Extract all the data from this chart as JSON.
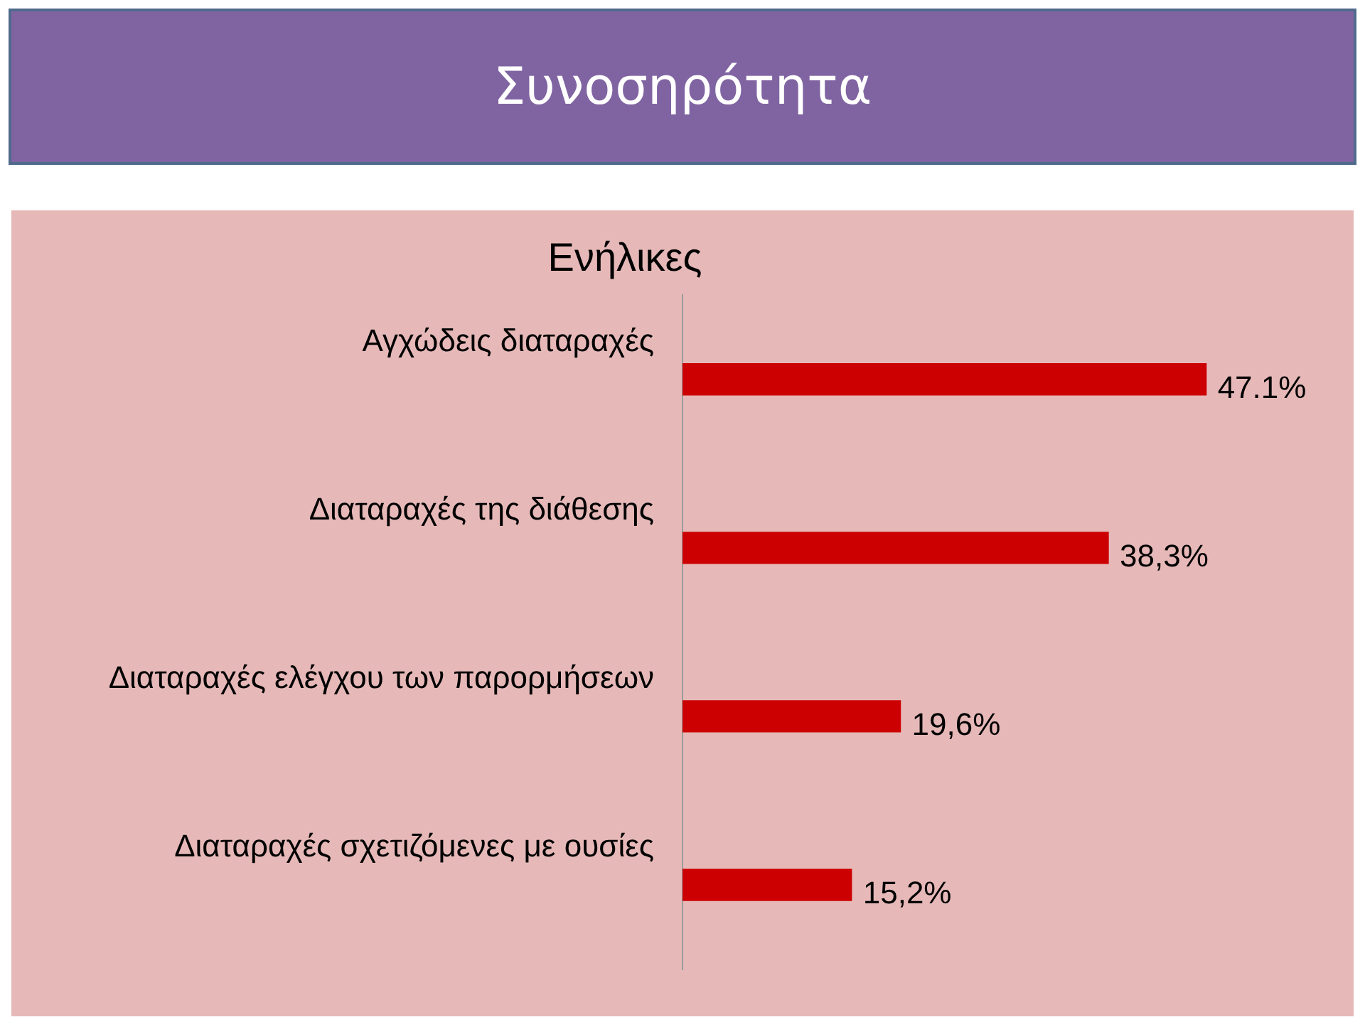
{
  "chart_data": {
    "type": "bar",
    "orientation": "horizontal",
    "title": "Συνοσηρότητα",
    "subtitle": "Ενήλικες",
    "categories": [
      "Αγχώδεις διαταραχές",
      "Διαταραχές της διάθεσης",
      "Διαταραχές ελέγχου των παρορμήσεων",
      "Διαταραχές σχετιζόμενες με ουσίες"
    ],
    "values": [
      47.1,
      38.3,
      19.6,
      15.2
    ],
    "value_labels": [
      "47.1%",
      "38,3%",
      "19,6%",
      "15,2%"
    ],
    "color": "#cc0000",
    "tick_labels": "y"
  }
}
